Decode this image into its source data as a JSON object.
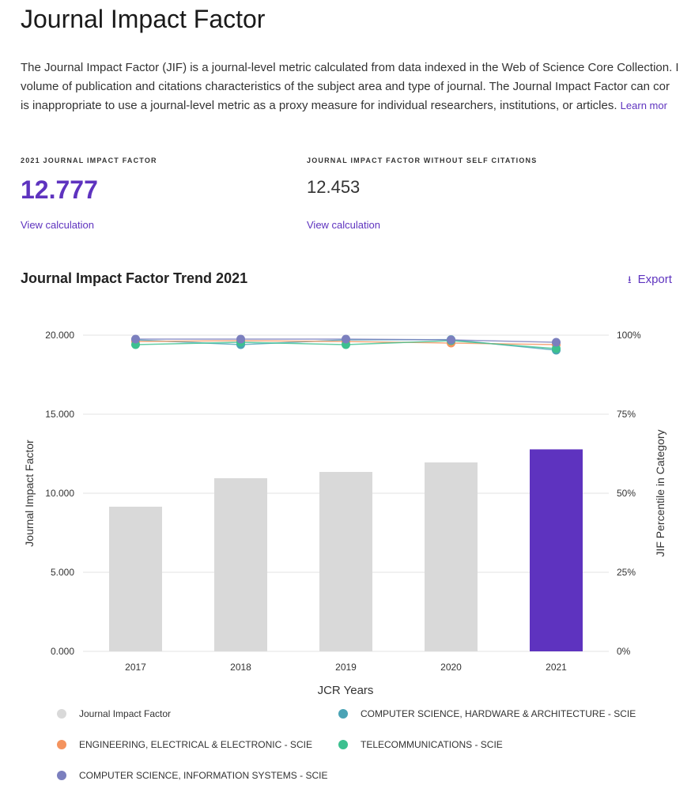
{
  "title": "Journal Impact Factor",
  "description": [
    "The Journal Impact Factor (JIF) is a journal-level metric calculated from data indexed in the Web of Science Core Collection. I",
    "volume of publication and citations characteristics of the subject area and type of journal. The Journal Impact Factor can cor",
    "is inappropriate to use a journal-level metric as a proxy measure for individual researchers, institutions, or articles. "
  ],
  "learn_more": "Learn mor",
  "metrics": [
    {
      "label": "2021 JOURNAL IMPACT FACTOR",
      "value": "12.777",
      "link": "View calculation"
    },
    {
      "label": "JOURNAL IMPACT FACTOR WITHOUT SELF CITATIONS",
      "value": "12.453",
      "link": "View calculation"
    }
  ],
  "export_label": "Export",
  "chart_data": {
    "type": "bar+line",
    "title": "Journal Impact Factor Trend 2021",
    "xlabel": "JCR Years",
    "ylabel": "Journal Impact Factor",
    "y2label": "JIF Percentile in Category",
    "categories": [
      "2017",
      "2018",
      "2019",
      "2020",
      "2021"
    ],
    "ylim": [
      0,
      20
    ],
    "yticks": [
      "0.000",
      "5.000",
      "10.000",
      "15.000",
      "20.000"
    ],
    "y2lim": [
      0,
      100
    ],
    "y2ticks": [
      "0%",
      "25%",
      "50%",
      "75%",
      "100%"
    ],
    "grid": true,
    "legend_position": "bottom",
    "bars": {
      "name": "Journal Impact Factor",
      "values": [
        9.15,
        10.95,
        11.35,
        11.95,
        12.777
      ],
      "color": "#d9d9d9",
      "highlight_color": "#5e33bf"
    },
    "series": [
      {
        "name": "COMPUTER SCIENCE, HARDWARE & ARCHITECTURE - SCIE",
        "values": [
          98.5,
          97,
          98.5,
          98.6,
          95.25
        ],
        "color": "#4aa3b5"
      },
      {
        "name": "ENGINEERING, ELECTRICAL & ELECTRONIC - SCIE",
        "values": [
          98,
          98.25,
          98,
          97.5,
          97
        ],
        "color": "#f4935e"
      },
      {
        "name": "TELECOMMUNICATIONS - SCIE",
        "values": [
          97,
          97.75,
          97,
          98.25,
          95.75
        ],
        "color": "#3cc08f"
      },
      {
        "name": "COMPUTER SCIENCE, INFORMATION SYSTEMS - SCIE",
        "values": [
          98.75,
          98.75,
          98.75,
          98.5,
          97.75
        ],
        "color": "#7b7fbe"
      }
    ]
  }
}
